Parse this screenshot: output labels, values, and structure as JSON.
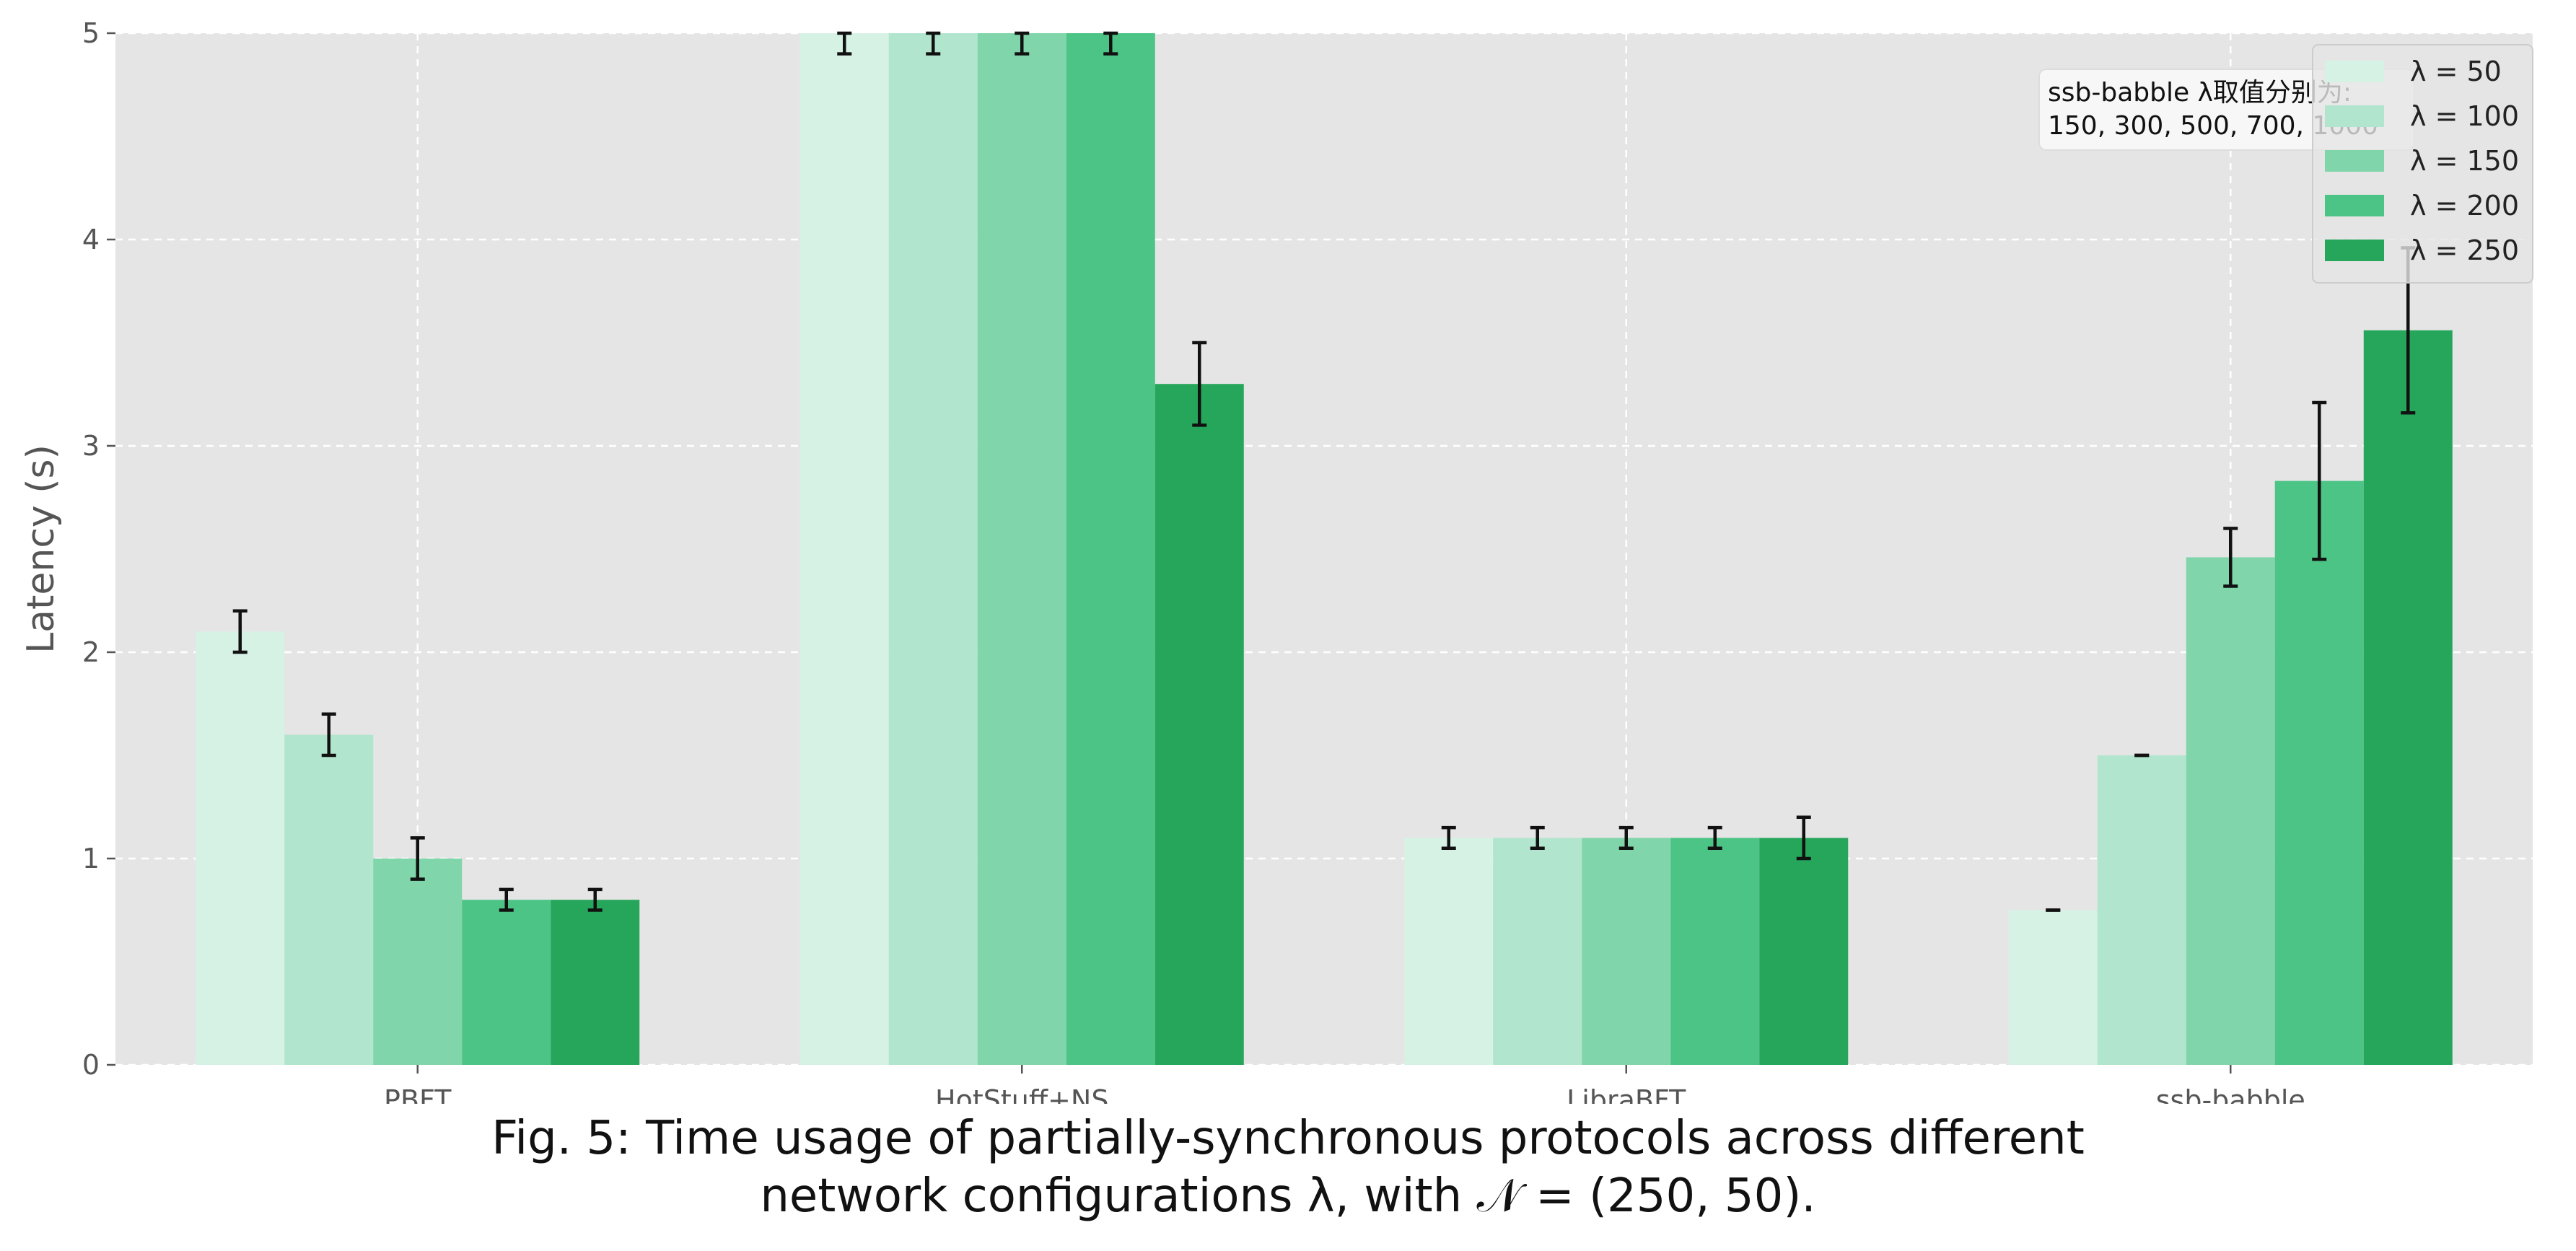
{
  "chart_data": {
    "type": "bar",
    "categories": [
      "PBFT",
      "HotStuff+NS",
      "LibraBFT",
      "ssb-babble"
    ],
    "series": [
      {
        "name": "λ = 50",
        "color": "#d6f2e5",
        "values": [
          2.1,
          5.0,
          1.1,
          0.75
        ],
        "errors": [
          0.1,
          0.1,
          0.05,
          0.0
        ]
      },
      {
        "name": "λ = 100",
        "color": "#b2e5ce",
        "values": [
          1.6,
          5.0,
          1.1,
          1.5
        ],
        "errors": [
          0.1,
          0.1,
          0.05,
          0.0
        ]
      },
      {
        "name": "λ = 150",
        "color": "#80d5aa",
        "values": [
          1.0,
          5.0,
          1.1,
          2.46
        ],
        "errors": [
          0.1,
          0.1,
          0.05,
          0.14
        ]
      },
      {
        "name": "λ = 200",
        "color": "#4cc485",
        "values": [
          0.8,
          5.0,
          1.1,
          2.83
        ],
        "errors": [
          0.05,
          0.1,
          0.05,
          0.38
        ]
      },
      {
        "name": "λ = 250",
        "color": "#26a65b",
        "values": [
          0.8,
          3.3,
          1.1,
          3.56
        ],
        "errors": [
          0.05,
          0.2,
          0.1,
          0.4
        ]
      }
    ],
    "ylabel": "Latency (s)",
    "xlabel": "",
    "ylim": [
      0,
      5
    ],
    "yticks": [
      "0",
      "1",
      "2",
      "3",
      "4",
      "5"
    ],
    "grid": true,
    "legend_position": "top-right",
    "annotation": "ssb-babble λ取值分别为:\n150, 300, 500, 700, 1000"
  },
  "caption": {
    "line1": "Fig. 5: Time usage of partially-synchronous protocols across different",
    "line2": "network configurations λ, with 𝒩 = (250, 50)."
  }
}
